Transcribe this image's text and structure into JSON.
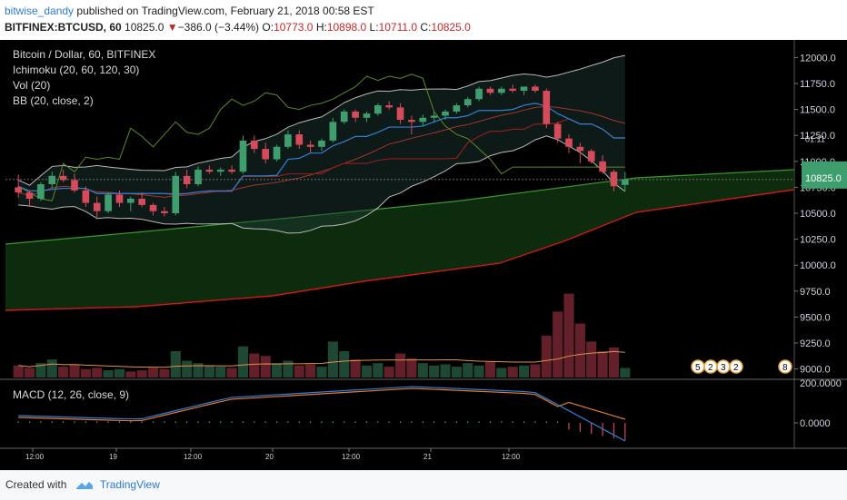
{
  "header": {
    "username": "bitwise_dandy",
    "published_text": "published on TradingView.com, February 21, 2018 00:58 EST",
    "symbol_label": "BITFINEX:BTCUSD, 60",
    "last": "10825.0",
    "change_arrow": "▼",
    "change": "−386.0 (−3.44%)",
    "o_label": "O:",
    "o_value": "10773.0",
    "h_label": "H:",
    "h_value": "10898.0",
    "l_label": "L:",
    "l_value": "10711.0",
    "c_label": "C:",
    "c_value": "10825.0"
  },
  "legend": {
    "title": "Bitcoin / Dollar, 60, BITFINEX",
    "ichimoku": "Ichimoku (20, 60, 120, 30)",
    "vol": "Vol (20)",
    "bb": "BB (20, close, 2)",
    "macd": "MACD (12, 26, close, 9)"
  },
  "footer": {
    "created_with": "Created with",
    "brand": "TradingView"
  },
  "colors": {
    "up": "#3f9e6e",
    "down": "#d64b5a",
    "background": "#000000",
    "accent": "#2e7bd0"
  },
  "chart_data": [
    {
      "type": "candlestick",
      "ylim": [
        8900,
        12100
      ],
      "price_ticks": [
        "12000.0",
        "11750.0",
        "11500.0",
        "11250.0",
        "11000.0",
        "10750.0",
        "10500.0",
        "10250.0",
        "10000.0",
        "9750.0",
        "9500.0",
        "9250.0",
        "9000.0"
      ],
      "x_labels": [
        "12:00",
        "19",
        "12:00",
        "20",
        "12:00",
        "21",
        "12:00"
      ],
      "last_price_label": "10825.0",
      "countdown_label": "01:11",
      "candles": [
        [
          10750,
          10870,
          10650,
          10700
        ],
        [
          10700,
          10720,
          10560,
          10640
        ],
        [
          10640,
          10800,
          10620,
          10780
        ],
        [
          10780,
          10900,
          10740,
          10860
        ],
        [
          10860,
          10920,
          10800,
          10820
        ],
        [
          10820,
          10880,
          10700,
          10720
        ],
        [
          10720,
          10760,
          10560,
          10600
        ],
        [
          10600,
          10660,
          10460,
          10520
        ],
        [
          10520,
          10700,
          10500,
          10680
        ],
        [
          10680,
          10720,
          10560,
          10600
        ],
        [
          10600,
          10660,
          10520,
          10640
        ],
        [
          10640,
          10700,
          10560,
          10580
        ],
        [
          10580,
          10600,
          10480,
          10520
        ],
        [
          10520,
          10560,
          10470,
          10500
        ],
        [
          10500,
          10900,
          10480,
          10860
        ],
        [
          10860,
          10920,
          10740,
          10780
        ],
        [
          10780,
          10950,
          10760,
          10920
        ],
        [
          10920,
          10960,
          10880,
          10900
        ],
        [
          10900,
          10940,
          10860,
          10920
        ],
        [
          10920,
          10960,
          10880,
          10900
        ],
        [
          10900,
          11250,
          10880,
          11200
        ],
        [
          11200,
          11250,
          11080,
          11120
        ],
        [
          11120,
          11180,
          10980,
          11020
        ],
        [
          11020,
          11160,
          11000,
          11140
        ],
        [
          11140,
          11300,
          11120,
          11260
        ],
        [
          11260,
          11300,
          11120,
          11160
        ],
        [
          11160,
          11200,
          11080,
          11140
        ],
        [
          11140,
          11220,
          11100,
          11200
        ],
        [
          11200,
          11420,
          11180,
          11380
        ],
        [
          11380,
          11500,
          11360,
          11480
        ],
        [
          11480,
          11500,
          11380,
          11420
        ],
        [
          11420,
          11480,
          11380,
          11460
        ],
        [
          11460,
          11560,
          11440,
          11540
        ],
        [
          11540,
          11580,
          11500,
          11520
        ],
        [
          11520,
          11560,
          11360,
          11400
        ],
        [
          11400,
          11440,
          11260,
          11380
        ],
        [
          11380,
          11450,
          11340,
          11420
        ],
        [
          11420,
          11480,
          11380,
          11440
        ],
        [
          11440,
          11500,
          11400,
          11480
        ],
        [
          11480,
          11560,
          11460,
          11540
        ],
        [
          11540,
          11620,
          11520,
          11600
        ],
        [
          11600,
          11720,
          11580,
          11700
        ],
        [
          11700,
          11720,
          11640,
          11660
        ],
        [
          11660,
          11720,
          11640,
          11700
        ],
        [
          11700,
          11740,
          11660,
          11680
        ],
        [
          11680,
          11720,
          11640,
          11720
        ],
        [
          11720,
          11740,
          11660,
          11680
        ],
        [
          11680,
          11700,
          11320,
          11360
        ],
        [
          11360,
          11380,
          11180,
          11220
        ],
        [
          11220,
          11260,
          11080,
          11140
        ],
        [
          11140,
          11180,
          10980,
          11100
        ],
        [
          11100,
          11120,
          10980,
          11000
        ],
        [
          11000,
          11060,
          10880,
          10900
        ],
        [
          10900,
          10920,
          10711,
          10760
        ],
        [
          10773,
          10898,
          10711,
          10825
        ]
      ],
      "volume": [
        [
          0.1,
          1
        ],
        [
          0.08,
          1
        ],
        [
          0.12,
          0
        ],
        [
          0.15,
          0
        ],
        [
          0.09,
          1
        ],
        [
          0.11,
          1
        ],
        [
          0.07,
          1
        ],
        [
          0.08,
          1
        ],
        [
          0.06,
          0
        ],
        [
          0.07,
          0
        ],
        [
          0.05,
          1
        ],
        [
          0.06,
          1
        ],
        [
          0.08,
          1
        ],
        [
          0.07,
          1
        ],
        [
          0.22,
          0
        ],
        [
          0.14,
          0
        ],
        [
          0.12,
          0
        ],
        [
          0.1,
          0
        ],
        [
          0.09,
          0
        ],
        [
          0.08,
          1
        ],
        [
          0.26,
          0
        ],
        [
          0.2,
          1
        ],
        [
          0.18,
          1
        ],
        [
          0.12,
          0
        ],
        [
          0.14,
          0
        ],
        [
          0.1,
          1
        ],
        [
          0.11,
          1
        ],
        [
          0.09,
          0
        ],
        [
          0.3,
          0
        ],
        [
          0.22,
          0
        ],
        [
          0.15,
          1
        ],
        [
          0.1,
          0
        ],
        [
          0.12,
          0
        ],
        [
          0.09,
          1
        ],
        [
          0.2,
          1
        ],
        [
          0.16,
          1
        ],
        [
          0.12,
          0
        ],
        [
          0.1,
          0
        ],
        [
          0.11,
          0
        ],
        [
          0.09,
          0
        ],
        [
          0.12,
          0
        ],
        [
          0.1,
          0
        ],
        [
          0.13,
          1
        ],
        [
          0.08,
          0
        ],
        [
          0.09,
          1
        ],
        [
          0.1,
          0
        ],
        [
          0.11,
          1
        ],
        [
          0.35,
          1
        ],
        [
          0.55,
          1
        ],
        [
          0.7,
          1
        ],
        [
          0.45,
          1
        ],
        [
          0.3,
          1
        ],
        [
          0.22,
          1
        ],
        [
          0.25,
          1
        ],
        [
          0.08,
          0
        ]
      ],
      "macd_ticks": [
        "200.0000",
        "0.0000"
      ],
      "flag_badges": [
        "5",
        "2",
        "3",
        "2",
        "8"
      ]
    }
  ]
}
